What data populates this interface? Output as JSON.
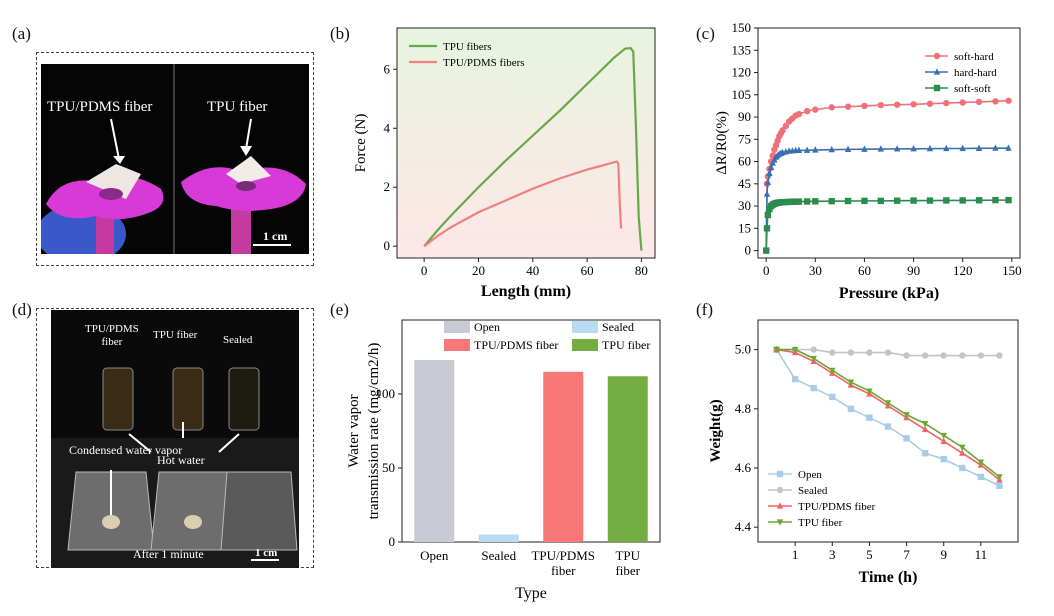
{
  "panels": {
    "a": {
      "letter": "(a)",
      "label_left": "TPU/PDMS fiber",
      "label_right": "TPU fiber",
      "scale": "1 cm"
    },
    "d": {
      "letter": "(d)",
      "vial_labels": [
        "TPU/PDMS\nfiber",
        "TPU fiber",
        "Sealed"
      ],
      "hot_water": "Hot water",
      "condensed": "Condensed water vapor",
      "after": "After 1 minute",
      "scale": "1 cm"
    }
  },
  "chart_data": [
    {
      "panel": "(b)",
      "type": "line",
      "xlabel": "Length (mm)",
      "ylabel": "Force (N)",
      "xlim": [
        -10,
        85
      ],
      "ylim": [
        -0.4,
        7.4
      ],
      "xticks": [
        0,
        20,
        40,
        60,
        80
      ],
      "yticks": [
        0,
        2,
        4,
        6
      ],
      "legend_position": "top-left",
      "series": [
        {
          "name": "TPU fibers",
          "color": "#6aa64a",
          "x": [
            0,
            5,
            10,
            20,
            30,
            40,
            50,
            60,
            65,
            70,
            74,
            76,
            77,
            78,
            79,
            80
          ],
          "y": [
            0,
            0.55,
            1.05,
            2.0,
            2.9,
            3.75,
            4.6,
            5.5,
            5.95,
            6.4,
            6.7,
            6.72,
            6.6,
            4.0,
            1.0,
            -0.15
          ]
        },
        {
          "name": "TPU/PDMS fibers",
          "color": "#f08080",
          "x": [
            0,
            5,
            10,
            20,
            30,
            40,
            50,
            60,
            65,
            70,
            71,
            71.5,
            72,
            72.5
          ],
          "y": [
            0,
            0.35,
            0.65,
            1.15,
            1.55,
            1.95,
            2.3,
            2.6,
            2.72,
            2.85,
            2.87,
            2.8,
            1.5,
            0.6
          ]
        }
      ]
    },
    {
      "panel": "(c)",
      "type": "line",
      "xlabel": "Pressure (kPa)",
      "ylabel": "ΔR/R0(%)",
      "xlim": [
        -5,
        155
      ],
      "ylim": [
        -5,
        150
      ],
      "xticks": [
        0,
        30,
        60,
        90,
        120,
        150
      ],
      "yticks": [
        0,
        15,
        30,
        45,
        60,
        75,
        90,
        105,
        120,
        135,
        150
      ],
      "legend_position": "top-right",
      "series": [
        {
          "name": "soft-hard",
          "color": "#f07078",
          "marker": "circle",
          "x": [
            0,
            0.5,
            1,
            2,
            3,
            4,
            5,
            6,
            7,
            8,
            9,
            10,
            12,
            14,
            16,
            18,
            20,
            25,
            30,
            40,
            50,
            60,
            70,
            80,
            90,
            100,
            110,
            120,
            130,
            140,
            148
          ],
          "y": [
            0,
            45,
            50,
            55,
            60,
            64,
            68,
            71,
            74,
            77,
            79,
            81,
            84,
            87,
            89,
            91,
            92,
            94,
            95,
            96.5,
            97,
            97.5,
            98,
            98.3,
            98.6,
            99,
            99.4,
            99.8,
            100.2,
            100.6,
            101
          ]
        },
        {
          "name": "hard-hard",
          "color": "#3a6fb0",
          "marker": "triangle",
          "x": [
            0,
            0.5,
            1,
            2,
            3,
            4,
            5,
            6,
            7,
            8,
            9,
            10,
            12,
            14,
            16,
            18,
            20,
            25,
            30,
            40,
            50,
            60,
            70,
            80,
            90,
            100,
            110,
            120,
            130,
            140,
            148
          ],
          "y": [
            0,
            38,
            46,
            52,
            56,
            59,
            61,
            63,
            64,
            65,
            65.5,
            66,
            66.5,
            67,
            67.2,
            67.4,
            67.5,
            67.6,
            67.8,
            68,
            68.2,
            68.3,
            68.4,
            68.5,
            68.6,
            68.7,
            68.8,
            68.8,
            68.9,
            69,
            69
          ]
        },
        {
          "name": "soft-soft",
          "color": "#2e8b4e",
          "marker": "square",
          "x": [
            0,
            0.5,
            1,
            2,
            3,
            4,
            5,
            6,
            7,
            8,
            9,
            10,
            12,
            14,
            16,
            18,
            20,
            25,
            30,
            40,
            50,
            60,
            70,
            80,
            90,
            100,
            110,
            120,
            130,
            140,
            148
          ],
          "y": [
            0,
            15,
            24,
            28,
            30,
            31,
            31.5,
            32,
            32.2,
            32.4,
            32.5,
            32.6,
            32.7,
            32.8,
            32.9,
            33,
            33,
            33.1,
            33.2,
            33.3,
            33.4,
            33.5,
            33.5,
            33.6,
            33.7,
            33.7,
            33.8,
            33.8,
            33.9,
            34,
            34
          ]
        }
      ]
    },
    {
      "panel": "(e)",
      "type": "bar",
      "xlabel": "Type",
      "ylabel": "Water vapor\ntransmission rate (mg/cm2/h)",
      "ylim": [
        0,
        150
      ],
      "yticks": [
        0,
        50,
        100
      ],
      "categories": [
        "Open",
        "Sealed",
        "TPU/PDMS\nfiber",
        "TPU\nfiber"
      ],
      "values": [
        123,
        5,
        115,
        112
      ],
      "colors": [
        "#c8cad6",
        "#b7dbf0",
        "#f87777",
        "#73ad42"
      ],
      "legend": [
        "Open",
        "Sealed",
        "TPU/PDMS fiber",
        "TPU fiber"
      ],
      "legend_position": "top"
    },
    {
      "panel": "(f)",
      "type": "line",
      "xlabel": "Time (h)",
      "ylabel": "Weight(g)",
      "xlim": [
        -1,
        13
      ],
      "ylim": [
        4.35,
        5.1
      ],
      "xticks": [
        1,
        3,
        5,
        7,
        9,
        11
      ],
      "yticks": [
        4.4,
        4.6,
        4.8,
        5.0
      ],
      "legend_position": "bottom-left",
      "x": [
        0,
        1,
        2,
        3,
        4,
        5,
        6,
        7,
        8,
        9,
        10,
        11,
        12
      ],
      "series": [
        {
          "name": "Open",
          "color": "#a9cde8",
          "marker": "square",
          "values": [
            5.0,
            4.9,
            4.87,
            4.84,
            4.8,
            4.77,
            4.74,
            4.7,
            4.65,
            4.63,
            4.6,
            4.57,
            4.54
          ]
        },
        {
          "name": "Sealed",
          "color": "#c4c4c4",
          "marker": "circle",
          "values": [
            5.0,
            5.0,
            5.0,
            4.99,
            4.99,
            4.99,
            4.99,
            4.98,
            4.98,
            4.98,
            4.98,
            4.98,
            4.98
          ]
        },
        {
          "name": "TPU/PDMS fiber",
          "color": "#f06464",
          "marker": "triangle",
          "values": [
            5.0,
            4.99,
            4.96,
            4.92,
            4.88,
            4.85,
            4.81,
            4.77,
            4.73,
            4.69,
            4.65,
            4.61,
            4.56
          ]
        },
        {
          "name": "TPU fiber",
          "color": "#6aa834",
          "marker": "triangle-down",
          "values": [
            5.0,
            5.0,
            4.97,
            4.93,
            4.89,
            4.86,
            4.82,
            4.78,
            4.75,
            4.71,
            4.67,
            4.62,
            4.57
          ]
        }
      ]
    }
  ]
}
